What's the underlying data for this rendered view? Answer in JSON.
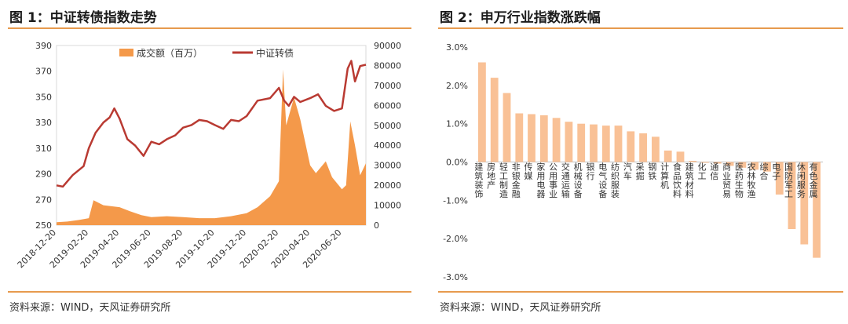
{
  "left_panel": {
    "title": "图 1：中证转债指数走势",
    "source": "资料来源：WIND，天风证券研究所"
  },
  "right_panel": {
    "title": "图 2：申万行业指数涨跌幅",
    "source": "资料来源：WIND，天风证券研究所"
  },
  "chart_data": [
    {
      "type": "line",
      "title": "图 1：中证转债指数走势",
      "legend": [
        "成交额（百万）",
        "中证转债"
      ],
      "legend_placement": "top-center",
      "x_tick_labels": [
        "2018-12-20",
        "2019-02-20",
        "2019-04-20",
        "2019-06-20",
        "2019-08-20",
        "2019-10-20",
        "2019-12-20",
        "2020-02-20",
        "2020-04-20",
        "2020-06-20"
      ],
      "y_left_ticks": [
        250,
        270,
        290,
        310,
        330,
        350,
        370,
        390
      ],
      "y_right_ticks": [
        0,
        10000,
        20000,
        30000,
        40000,
        50000,
        60000,
        70000,
        80000,
        90000
      ],
      "ylim_left": [
        250,
        390
      ],
      "ylim_right": [
        0,
        90000
      ],
      "colors": {
        "volume": "#f4994a",
        "index": "#b93a32"
      },
      "series": [
        {
          "name": "成交额（百万）",
          "type": "area",
          "axis": "right",
          "x": [
            "2018-12-20",
            "2019-01-10",
            "2019-02-01",
            "2019-02-20",
            "2019-03-01",
            "2019-03-20",
            "2019-04-20",
            "2019-05-10",
            "2019-06-01",
            "2019-06-20",
            "2019-07-20",
            "2019-08-20",
            "2019-09-20",
            "2019-10-20",
            "2019-11-20",
            "2019-12-20",
            "2020-01-10",
            "2020-02-03",
            "2020-02-20",
            "2020-02-28",
            "2020-03-05",
            "2020-03-20",
            "2020-04-01",
            "2020-04-20",
            "2020-05-01",
            "2020-05-20",
            "2020-06-01",
            "2020-06-20",
            "2020-06-28",
            "2020-07-06",
            "2020-07-15",
            "2020-07-25",
            "2020-08-05"
          ],
          "values": [
            1500,
            1800,
            2600,
            3500,
            12500,
            10000,
            9000,
            7000,
            5000,
            4000,
            4500,
            4000,
            3500,
            3500,
            4500,
            6000,
            9000,
            14500,
            22000,
            78000,
            50000,
            64000,
            53000,
            30000,
            26000,
            32000,
            24000,
            18000,
            20000,
            52000,
            40000,
            25000,
            31000
          ]
        },
        {
          "name": "中证转债",
          "type": "line",
          "axis": "left",
          "x": [
            "2018-12-20",
            "2019-01-01",
            "2019-01-20",
            "2019-02-10",
            "2019-02-20",
            "2019-03-05",
            "2019-03-20",
            "2019-04-01",
            "2019-04-10",
            "2019-04-20",
            "2019-05-05",
            "2019-05-20",
            "2019-06-05",
            "2019-06-20",
            "2019-07-05",
            "2019-07-20",
            "2019-08-05",
            "2019-08-20",
            "2019-09-05",
            "2019-09-20",
            "2019-10-05",
            "2019-10-20",
            "2019-11-05",
            "2019-11-20",
            "2019-12-05",
            "2019-12-20",
            "2020-01-10",
            "2020-02-03",
            "2020-02-20",
            "2020-03-01",
            "2020-03-10",
            "2020-03-20",
            "2020-04-01",
            "2020-04-20",
            "2020-05-05",
            "2020-05-20",
            "2020-06-05",
            "2020-06-20",
            "2020-07-01",
            "2020-07-08",
            "2020-07-15",
            "2020-07-25",
            "2020-08-05"
          ],
          "values": [
            281,
            280,
            289,
            296,
            310,
            322,
            330,
            334,
            341,
            333,
            317,
            312,
            304,
            315,
            313,
            317,
            320,
            326,
            328,
            332,
            331,
            328,
            325,
            332,
            331,
            335,
            347,
            349,
            357,
            347,
            343,
            350,
            346,
            349,
            352,
            343,
            339,
            341,
            372,
            378,
            362,
            374,
            375
          ]
        }
      ]
    },
    {
      "type": "bar",
      "title": "图 2：申万行业指数涨跌幅",
      "categories": [
        "建筑装饰",
        "房地产",
        "轻工制造",
        "非银金融",
        "传媒",
        "家用电器",
        "公用事业",
        "交通运输",
        "机械设备",
        "银行",
        "电气设备",
        "纺织服装",
        "汽车",
        "采掘",
        "钢铁",
        "计算机",
        "食品饮料",
        "建筑材料",
        "化工",
        "通信",
        "商业贸易",
        "医药生物",
        "农林牧渔",
        "综合",
        "电子",
        "国防军工",
        "休闲服务",
        "有色金属"
      ],
      "values": [
        2.6,
        2.2,
        1.8,
        1.27,
        1.25,
        1.22,
        1.15,
        1.05,
        1.0,
        0.98,
        0.95,
        0.95,
        0.8,
        0.75,
        0.66,
        0.3,
        0.27,
        0.03,
        -0.02,
        -0.04,
        -0.1,
        -0.15,
        -0.2,
        -0.25,
        -0.85,
        -1.75,
        -2.15,
        -2.5
      ],
      "ylim": [
        -3.0,
        3.0
      ],
      "y_ticks": [
        "3.0%",
        "2.0%",
        "1.0%",
        "0.0%",
        "-1.0%",
        "-2.0%",
        "-3.0%"
      ],
      "bar_color": "#f9c196",
      "grid": false
    }
  ]
}
